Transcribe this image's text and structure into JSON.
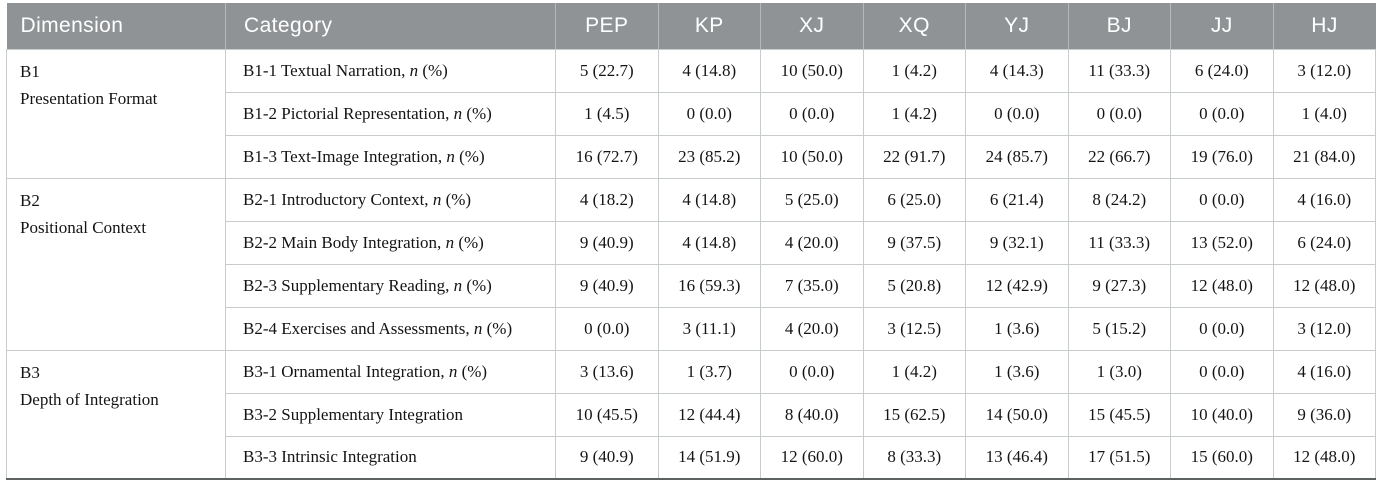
{
  "colors": {
    "page_bg": "#FFFFFF",
    "header_bg": "#8F9395",
    "header_text": "#FFFFFF",
    "header_divider": "#B5B9BA",
    "grid_line": "#C9CCCD",
    "bottom_rule": "#5E6263",
    "body_text": "#141414"
  },
  "table": {
    "columns": [
      "Dimension",
      "Category",
      "PEP",
      "KP",
      "XJ",
      "XQ",
      "YJ",
      "BJ",
      "JJ",
      "HJ"
    ],
    "sections": [
      {
        "dimension": {
          "code": "B1",
          "name": "Presentation Format"
        },
        "rows": [
          {
            "label": "B1-1 Textual Narration, ",
            "n_italic": "n",
            "n_rest": " (%)",
            "values": [
              "5 (22.7)",
              "4 (14.8)",
              "10 (50.0)",
              "1 (4.2)",
              "4 (14.3)",
              "11 (33.3)",
              "6 (24.0)",
              "3 (12.0)"
            ]
          },
          {
            "label": "B1-2 Pictorial Representation, ",
            "n_italic": "n",
            "n_rest": " (%)",
            "values": [
              "1 (4.5)",
              "0 (0.0)",
              "0 (0.0)",
              "1 (4.2)",
              "0 (0.0)",
              "0 (0.0)",
              "0 (0.0)",
              "1 (4.0)"
            ]
          },
          {
            "label": "B1-3 Text-Image Integration, ",
            "n_italic": "n",
            "n_rest": " (%)",
            "values": [
              "16 (72.7)",
              "23 (85.2)",
              "10 (50.0)",
              "22 (91.7)",
              "24 (85.7)",
              "22 (66.7)",
              "19 (76.0)",
              "21 (84.0)"
            ]
          }
        ]
      },
      {
        "dimension": {
          "code": "B2",
          "name": "Positional Context"
        },
        "rows": [
          {
            "label": "B2-1 Introductory Context, ",
            "n_italic": "n",
            "n_rest": " (%)",
            "values": [
              "4 (18.2)",
              "4 (14.8)",
              "5 (25.0)",
              "6 (25.0)",
              "6 (21.4)",
              "8 (24.2)",
              "0 (0.0)",
              "4 (16.0)"
            ]
          },
          {
            "label": "B2-2 Main Body Integration, ",
            "n_italic": "n",
            "n_rest": " (%)",
            "values": [
              "9 (40.9)",
              "4 (14.8)",
              "4 (20.0)",
              "9 (37.5)",
              "9 (32.1)",
              "11 (33.3)",
              "13 (52.0)",
              "6 (24.0)"
            ]
          },
          {
            "label": "B2-3 Supplementary Reading, ",
            "n_italic": "n",
            "n_rest": " (%)",
            "values": [
              "9 (40.9)",
              "16 (59.3)",
              "7 (35.0)",
              "5 (20.8)",
              "12 (42.9)",
              "9 (27.3)",
              "12 (48.0)",
              "12 (48.0)"
            ]
          },
          {
            "label": "B2-4 Exercises and Assessments, ",
            "n_italic": "n",
            "n_rest": " (%)",
            "values": [
              "0 (0.0)",
              "3 (11.1)",
              "4 (20.0)",
              "3 (12.5)",
              "1 (3.6)",
              "5 (15.2)",
              "0 (0.0)",
              "3 (12.0)"
            ]
          }
        ]
      },
      {
        "dimension": {
          "code": "B3",
          "name": "Depth of Integration"
        },
        "rows": [
          {
            "label": "B3-1 Ornamental Integration, ",
            "n_italic": "n",
            "n_rest": " (%)",
            "values": [
              "3 (13.6)",
              "1 (3.7)",
              "0 (0.0)",
              "1 (4.2)",
              "1 (3.6)",
              "1 (3.0)",
              "0 (0.0)",
              "4 (16.0)"
            ]
          },
          {
            "label": "B3-2 Supplementary Integration",
            "n_italic": "",
            "n_rest": "",
            "values": [
              "10 (45.5)",
              "12 (44.4)",
              "8 (40.0)",
              "15 (62.5)",
              "14 (50.0)",
              "15 (45.5)",
              "10 (40.0)",
              "9 (36.0)"
            ]
          },
          {
            "label": "B3-3 Intrinsic Integration",
            "n_italic": "",
            "n_rest": "",
            "values": [
              "9 (40.9)",
              "14 (51.9)",
              "12 (60.0)",
              "8 (33.3)",
              "13 (46.4)",
              "17 (51.5)",
              "15 (60.0)",
              "12 (48.0)"
            ]
          }
        ]
      }
    ]
  }
}
